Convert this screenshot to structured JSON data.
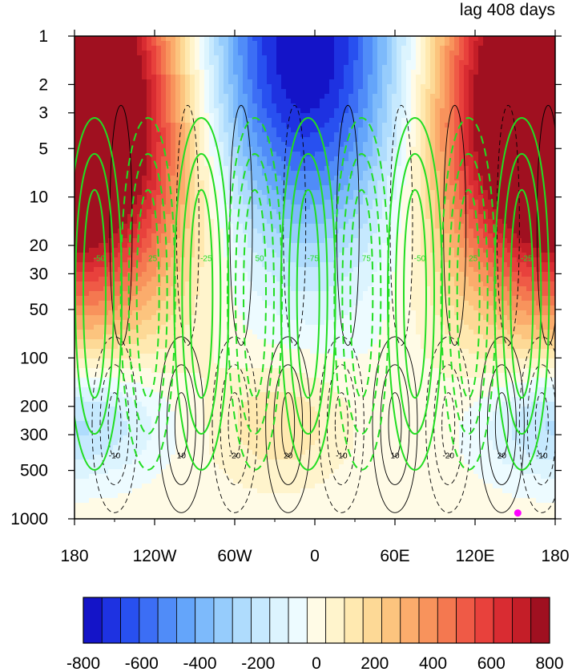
{
  "chart_data": {
    "type": "heatmap",
    "title": "lag 408 days",
    "xlabel": "",
    "ylabel": "",
    "x_ticks": [
      {
        "lon": -180,
        "label": "180"
      },
      {
        "lon": -120,
        "label": "120W"
      },
      {
        "lon": -60,
        "label": "60W"
      },
      {
        "lon": 0,
        "label": "0"
      },
      {
        "lon": 60,
        "label": "60E"
      },
      {
        "lon": 120,
        "label": "120E"
      },
      {
        "lon": 180,
        "label": "180"
      }
    ],
    "xlim": [
      -180,
      180
    ],
    "y_ticks": [
      {
        "p": 1,
        "label": "1"
      },
      {
        "p": 2,
        "label": "2"
      },
      {
        "p": 3,
        "label": "3"
      },
      {
        "p": 5,
        "label": "5"
      },
      {
        "p": 10,
        "label": "10"
      },
      {
        "p": 20,
        "label": "20"
      },
      {
        "p": 30,
        "label": "30"
      },
      {
        "p": 50,
        "label": "50"
      },
      {
        "p": 100,
        "label": "100"
      },
      {
        "p": 200,
        "label": "200"
      },
      {
        "p": 300,
        "label": "300"
      },
      {
        "p": 500,
        "label": "500"
      },
      {
        "p": 1000,
        "label": "1000"
      }
    ],
    "ylim": [
      1000,
      1
    ],
    "y_scale": "log",
    "colorbar": {
      "min": -800,
      "max": 800,
      "step": 50,
      "tick_labels": [
        "-800",
        "-600",
        "-400",
        "-200",
        "0",
        "200",
        "400",
        "600",
        "800"
      ],
      "colors": [
        "#1414c8",
        "#1e32e1",
        "#2850f0",
        "#3c6ef5",
        "#508cf8",
        "#64a5fa",
        "#7dbafb",
        "#96ccfc",
        "#afdcfd",
        "#c6e9fe",
        "#dcf4fe",
        "#edfbff",
        "#fffbe6",
        "#fff4cc",
        "#ffe9b0",
        "#fdd996",
        "#fcc47e",
        "#fbac6c",
        "#f8935c",
        "#f47850",
        "#ef5a46",
        "#e8413c",
        "#d92c32",
        "#c41e28",
        "#a01020"
      ]
    },
    "shaded_field": {
      "description_units": "filled contours, colorbar -800 to 800",
      "centers": [
        {
          "lon": -10,
          "p": 2,
          "value": -620
        },
        {
          "lon": 170,
          "p": 2.5,
          "value": 650
        },
        {
          "lon": -170,
          "p": 6,
          "value": 560
        },
        {
          "lon": -25,
          "p": 250,
          "value": 170
        },
        {
          "lon": 165,
          "p": 250,
          "value": -210
        },
        {
          "lon": -150,
          "p": 230,
          "value": -160
        }
      ]
    },
    "black_contours": {
      "style": "solid positive, dashed negative",
      "labels": [
        "-10",
        "10",
        "-20",
        "20",
        "-10",
        "10",
        "-20",
        "20",
        "-10",
        "10"
      ]
    },
    "green_contours": {
      "color": "#22dd22",
      "style": "solid positive, dashed negative",
      "labels": [
        "-50",
        "25",
        "-25",
        "50",
        "-75",
        "75",
        "-50",
        "25",
        "-25",
        "50",
        "75",
        "-75"
      ]
    },
    "marker": {
      "lon": 152,
      "p": 920,
      "color": "#ff00ff"
    }
  }
}
